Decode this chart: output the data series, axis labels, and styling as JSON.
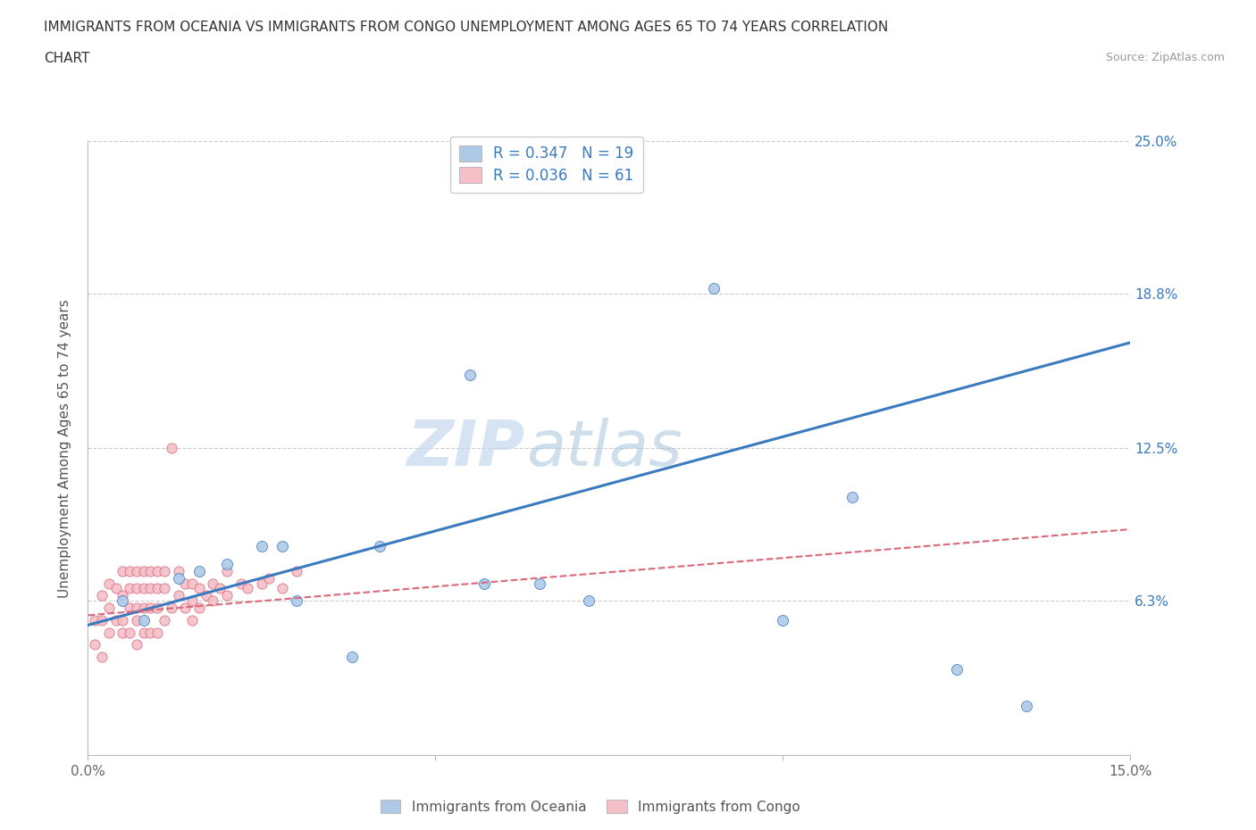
{
  "title_line1": "IMMIGRANTS FROM OCEANIA VS IMMIGRANTS FROM CONGO UNEMPLOYMENT AMONG AGES 65 TO 74 YEARS CORRELATION",
  "title_line2": "CHART",
  "source": "Source: ZipAtlas.com",
  "ylabel": "Unemployment Among Ages 65 to 74 years",
  "xlim": [
    0,
    0.15
  ],
  "ylim": [
    0,
    0.25
  ],
  "xticks": [
    0.0,
    0.05,
    0.1,
    0.15
  ],
  "xticklabels": [
    "0.0%",
    "",
    "",
    "15.0%"
  ],
  "ytick_values": [
    0.0,
    0.063,
    0.125,
    0.188,
    0.25
  ],
  "ytick_labels": [
    "",
    "6.3%",
    "12.5%",
    "18.8%",
    "25.0%"
  ],
  "oceania_R": 0.347,
  "oceania_N": 19,
  "congo_R": 0.036,
  "congo_N": 61,
  "oceania_color": "#aec9e8",
  "oceania_line_color": "#3a7abf",
  "congo_color": "#f5bfc8",
  "congo_line_color": "#d9687a",
  "watermark_zip": "ZIP",
  "watermark_atlas": "atlas",
  "oceania_x": [
    0.005,
    0.008,
    0.013,
    0.016,
    0.02,
    0.025,
    0.028,
    0.03,
    0.038,
    0.042,
    0.055,
    0.057,
    0.065,
    0.072,
    0.09,
    0.1,
    0.11,
    0.125,
    0.135
  ],
  "oceania_y": [
    0.063,
    0.055,
    0.072,
    0.075,
    0.078,
    0.085,
    0.085,
    0.063,
    0.04,
    0.085,
    0.155,
    0.07,
    0.07,
    0.063,
    0.19,
    0.055,
    0.105,
    0.035,
    0.02
  ],
  "congo_x": [
    0.001,
    0.001,
    0.002,
    0.002,
    0.002,
    0.003,
    0.003,
    0.003,
    0.004,
    0.004,
    0.005,
    0.005,
    0.005,
    0.005,
    0.006,
    0.006,
    0.006,
    0.006,
    0.007,
    0.007,
    0.007,
    0.007,
    0.007,
    0.008,
    0.008,
    0.008,
    0.008,
    0.009,
    0.009,
    0.009,
    0.009,
    0.01,
    0.01,
    0.01,
    0.01,
    0.011,
    0.011,
    0.011,
    0.012,
    0.012,
    0.013,
    0.013,
    0.014,
    0.014,
    0.015,
    0.015,
    0.015,
    0.016,
    0.016,
    0.017,
    0.018,
    0.018,
    0.019,
    0.02,
    0.02,
    0.022,
    0.023,
    0.025,
    0.026,
    0.028,
    0.03
  ],
  "congo_y": [
    0.055,
    0.045,
    0.065,
    0.055,
    0.04,
    0.07,
    0.06,
    0.05,
    0.068,
    0.055,
    0.075,
    0.065,
    0.055,
    0.05,
    0.075,
    0.068,
    0.06,
    0.05,
    0.075,
    0.068,
    0.06,
    0.055,
    0.045,
    0.075,
    0.068,
    0.06,
    0.05,
    0.075,
    0.068,
    0.06,
    0.05,
    0.075,
    0.068,
    0.06,
    0.05,
    0.075,
    0.068,
    0.055,
    0.125,
    0.06,
    0.075,
    0.065,
    0.07,
    0.06,
    0.07,
    0.063,
    0.055,
    0.068,
    0.06,
    0.065,
    0.07,
    0.063,
    0.068,
    0.075,
    0.065,
    0.07,
    0.068,
    0.07,
    0.072,
    0.068,
    0.075
  ],
  "oceania_trend": [
    0.053,
    0.168
  ],
  "congo_trend": [
    0.057,
    0.092
  ],
  "background_color": "#ffffff",
  "plot_bg_color": "#ffffff",
  "grid_color": "#cccccc"
}
